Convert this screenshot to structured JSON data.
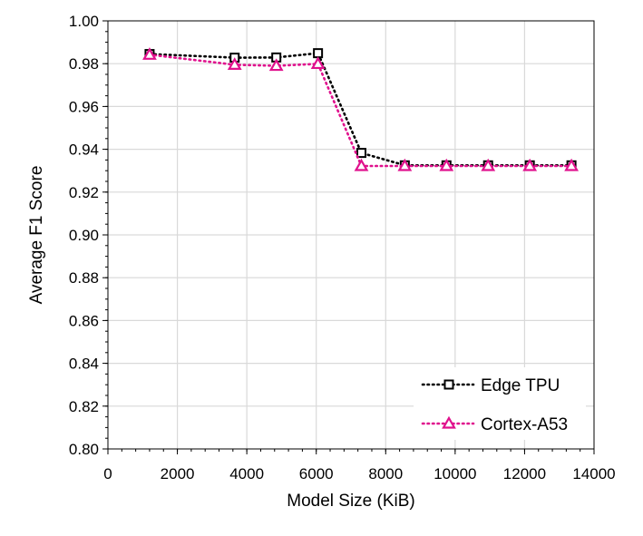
{
  "chart_data": {
    "type": "line",
    "xlabel": "Model Size (KiB)",
    "ylabel": "Average F1 Score",
    "xlim": [
      0,
      14000
    ],
    "ylim": [
      0.8,
      1.0
    ],
    "x_ticks": [
      "0",
      "2000",
      "4000",
      "6000",
      "8000",
      "10000",
      "12000",
      "14000"
    ],
    "y_ticks": [
      "0.80",
      "0.82",
      "0.84",
      "0.86",
      "0.88",
      "0.90",
      "0.92",
      "0.94",
      "0.96",
      "0.98",
      "1.00"
    ],
    "grid": true,
    "legend_position": "bottom-right",
    "series": [
      {
        "name": "Edge TPU",
        "color": "#000000",
        "marker": "square",
        "line_style": "dotted",
        "x": [
          1200,
          3650,
          4850,
          6050,
          7300,
          8550,
          9750,
          10950,
          12150,
          13350
        ],
        "y": [
          0.9845,
          0.9828,
          0.9829,
          0.9849,
          0.9383,
          0.9325,
          0.9325,
          0.9325,
          0.9325,
          0.9325
        ]
      },
      {
        "name": "Cortex-A53",
        "color": "#e0118d",
        "marker": "triangle",
        "line_style": "dotted",
        "x": [
          1200,
          3650,
          4850,
          6050,
          7300,
          8550,
          9750,
          10950,
          12150,
          13350
        ],
        "y": [
          0.9842,
          0.9795,
          0.979,
          0.9799,
          0.9322,
          0.9322,
          0.9322,
          0.9322,
          0.9322,
          0.9322
        ]
      }
    ]
  }
}
